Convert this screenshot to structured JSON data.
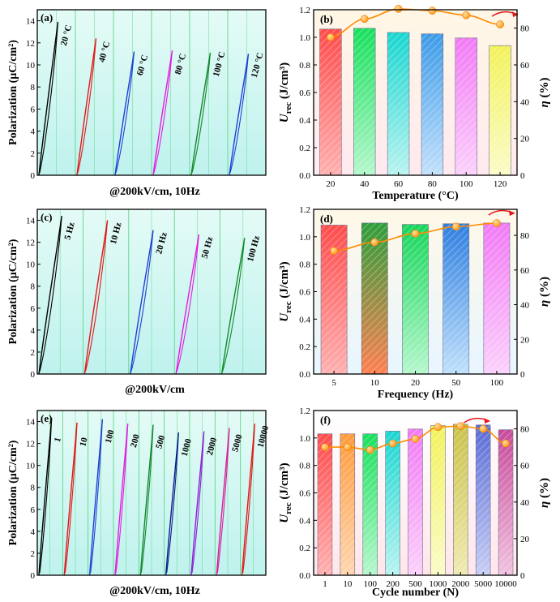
{
  "colors": {
    "pe_bg_top": "#e4fbf6",
    "pe_bg_bottom": "#bff2ee",
    "pe_grid": "#4fd27a",
    "marker_line": "#ff8a00",
    "marker_fill": "#ff9a1a",
    "arrow": "#e5161a"
  },
  "pe_panels": [
    {
      "id": "a",
      "panel_label": "(a)",
      "ylabel": "Polarization (μC/cm²)",
      "xlabel": "@200kV/cm, 10Hz",
      "yticks": [
        "0",
        "2",
        "4",
        "6",
        "8",
        "10",
        "12",
        "14"
      ],
      "ylim": [
        0,
        15
      ],
      "curves": [
        {
          "label": "20 °C",
          "color": "#000000",
          "pmax": 13.9
        },
        {
          "label": "40 °C",
          "color": "#e01818",
          "pmax": 12.4
        },
        {
          "label": "60 °C",
          "color": "#1f3fd6",
          "pmax": 11.2
        },
        {
          "label": "80 °C",
          "color": "#e31be0",
          "pmax": 11.3
        },
        {
          "label": "100 °C",
          "color": "#138a2a",
          "pmax": 11.1
        },
        {
          "label": "120 °C",
          "color": "#1f3fd6",
          "pmax": 11.0
        }
      ]
    },
    {
      "id": "c",
      "panel_label": "(c)",
      "ylabel": "Polarization (μC/cm²)",
      "xlabel": "@200kV/cm",
      "yticks": [
        "0",
        "2",
        "4",
        "6",
        "8",
        "10",
        "12",
        "14"
      ],
      "ylim": [
        0,
        15
      ],
      "curves": [
        {
          "label": "5 Hz",
          "color": "#000000",
          "pmax": 14.4
        },
        {
          "label": "10 Hz",
          "color": "#e01818",
          "pmax": 14.0
        },
        {
          "label": "20 Hz",
          "color": "#1f3fd6",
          "pmax": 13.1
        },
        {
          "label": "50 Hz",
          "color": "#e31be0",
          "pmax": 12.7
        },
        {
          "label": "100 Hz",
          "color": "#138a2a",
          "pmax": 12.4
        }
      ]
    },
    {
      "id": "e",
      "panel_label": "(e)",
      "ylabel": "Polarization (μC/cm²)",
      "xlabel": "@200kV/cm, 10Hz",
      "yticks": [
        "0",
        "2",
        "4",
        "6",
        "8",
        "10",
        "12",
        "14"
      ],
      "ylim": [
        0,
        15
      ],
      "curves": [
        {
          "label": "1",
          "color": "#000000",
          "pmax": 14.3
        },
        {
          "label": "10",
          "color": "#e01818",
          "pmax": 13.9
        },
        {
          "label": "100",
          "color": "#1f3fd6",
          "pmax": 14.2
        },
        {
          "label": "200",
          "color": "#e31be0",
          "pmax": 13.8
        },
        {
          "label": "500",
          "color": "#138a2a",
          "pmax": 13.7
        },
        {
          "label": "1000",
          "color": "#0a1e8a",
          "pmax": 13.0
        },
        {
          "label": "2000",
          "color": "#8a1fd6",
          "pmax": 13.1
        },
        {
          "label": "5000",
          "color": "#d61f9a",
          "pmax": 13.4
        },
        {
          "label": "10000",
          "color": "#e01818",
          "pmax": 13.8
        }
      ]
    }
  ],
  "chart_data": [
    {
      "type": "bar",
      "panel_label": "(b)",
      "categories": [
        "20",
        "40",
        "60",
        "80",
        "100",
        "120"
      ],
      "values": [
        1.06,
        1.065,
        1.035,
        1.025,
        0.995,
        0.94
      ],
      "xlabel": "Temperature (°C)",
      "ylabel": "Urec (J/cm³)",
      "ylabel_main": "U",
      "ylabel_sub": "rec",
      "ylabel_rest": " (J/cm³)",
      "ylim": [
        0,
        1.2
      ],
      "yticks": [
        "0.0",
        "0.2",
        "0.4",
        "0.6",
        "0.8",
        "1.0",
        "1.2"
      ],
      "y2label_main": "η",
      "y2label_rest": " (%)",
      "y2lim": [
        0,
        90
      ],
      "y2ticks": [
        "0",
        "20",
        "40",
        "60",
        "80"
      ],
      "eta": [
        75,
        85,
        90.5,
        89.5,
        87,
        82
      ],
      "bar_colors": [
        [
          "#ff4c4c",
          "#ffb0b0"
        ],
        [
          "#17e05c",
          "#b5f7cc"
        ],
        [
          "#19d6d0",
          "#b9f3f0"
        ],
        [
          "#3d9be8",
          "#c2e0fb"
        ],
        [
          "#f27af5",
          "#fbd1fb"
        ],
        [
          "#f2f25a",
          "#fbfbc8"
        ]
      ],
      "bg": [
        "#fff7e6",
        "#ffe9ef"
      ]
    },
    {
      "type": "bar",
      "panel_label": "(d)",
      "categories": [
        "5",
        "10",
        "20",
        "50",
        "100"
      ],
      "values": [
        1.085,
        1.1,
        1.09,
        1.095,
        1.1
      ],
      "xlabel": "Frequency (Hz)",
      "ylabel": "Urec (J/cm³)",
      "ylabel_main": "U",
      "ylabel_sub": "rec",
      "ylabel_rest": " (J/cm³)",
      "ylim": [
        0,
        1.2
      ],
      "yticks": [
        "0.0",
        "0.2",
        "0.4",
        "0.6",
        "0.8",
        "1.0",
        "1.2"
      ],
      "y2label_main": "η",
      "y2label_rest": " (%)",
      "y2lim": [
        0,
        95
      ],
      "y2ticks": [
        "0",
        "20",
        "40",
        "60",
        "80"
      ],
      "eta": [
        71,
        76,
        81,
        85,
        87
      ],
      "bar_colors": [
        [
          "#ff4c4c",
          "#ffb0b0"
        ],
        [
          "#2e9e3a",
          "#ff7f50"
        ],
        [
          "#17d65a",
          "#b5f7cc"
        ],
        [
          "#2f7fe0",
          "#bfe0fb"
        ],
        [
          "#f27af5",
          "#fbd1fb"
        ]
      ],
      "bg": [
        "#fff8e8",
        "#e8f6ff"
      ]
    },
    {
      "type": "bar",
      "panel_label": "(f)",
      "categories": [
        "1",
        "10",
        "100",
        "200",
        "500",
        "1000",
        "2000",
        "5000",
        "10000"
      ],
      "values": [
        1.03,
        1.03,
        1.03,
        1.05,
        1.065,
        1.09,
        1.1,
        1.095,
        1.06
      ],
      "xlabel": "Cycle number (N)",
      "ylabel": "Urec (J/cm³)",
      "ylabel_main": "U",
      "ylabel_sub": "rec",
      "ylabel_rest": " (J/cm³)",
      "ylim": [
        0,
        1.2
      ],
      "yticks": [
        "0.0",
        "0.2",
        "0.4",
        "0.6",
        "0.8",
        "1.0",
        "1.2"
      ],
      "y2label_main": "η",
      "y2label_rest": " (%)",
      "y2lim": [
        0,
        90
      ],
      "y2ticks": [
        "0",
        "20",
        "40",
        "60",
        "80"
      ],
      "eta": [
        70,
        70,
        68.5,
        72,
        74.5,
        81,
        81.5,
        80,
        72
      ],
      "bar_colors": [
        [
          "#ff4c4c",
          "#ffb0b0"
        ],
        [
          "#ff9a3c",
          "#ffd6b0"
        ],
        [
          "#17e05c",
          "#b5f7cc"
        ],
        [
          "#19d6d0",
          "#b9f3f0"
        ],
        [
          "#f27af5",
          "#fbd1fb"
        ],
        [
          "#f2f25a",
          "#fbfbc8"
        ],
        [
          "#c9c24a",
          "#efeab0"
        ],
        [
          "#5a6bd6",
          "#c7cdf3"
        ],
        [
          "#c74a9a",
          "#f1c2df"
        ]
      ],
      "bg": [
        "#ffffff",
        "#ffe6ea"
      ]
    }
  ]
}
